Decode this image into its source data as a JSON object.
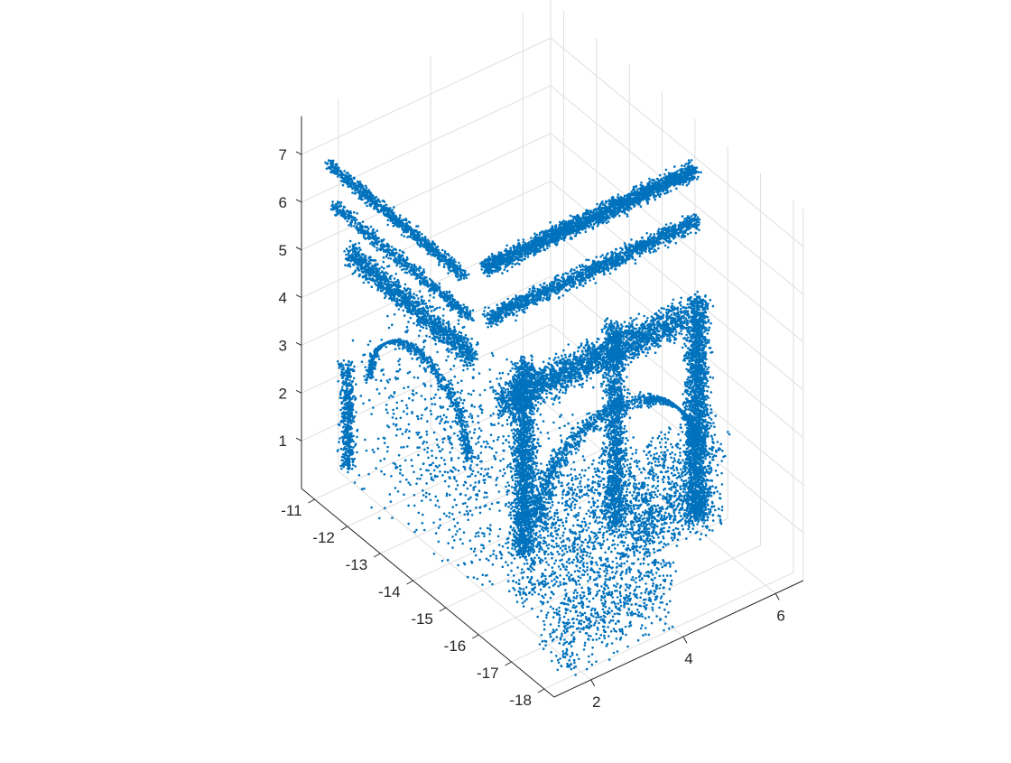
{
  "chart_data": {
    "type": "scatter",
    "subtype": "3d-point-cloud",
    "title": "",
    "xlabel": "",
    "ylabel": "",
    "zlabel": "",
    "x_ticks": [
      "-11",
      "-12",
      "-13",
      "-14",
      "-15",
      "-16",
      "-17",
      "-18"
    ],
    "y_ticks": [
      "2",
      "4",
      "6"
    ],
    "z_ticks": [
      "1",
      "2",
      "3",
      "4",
      "5",
      "6",
      "7"
    ],
    "xlim": [
      -18.3,
      -10.6
    ],
    "ylim": [
      1.2,
      6.6
    ],
    "zlim": [
      0,
      7.8
    ],
    "grid": true,
    "legend": "none",
    "marker_color": "#0072bd",
    "axis_color": "#262626",
    "grid_color": "#dfdfdf",
    "point_count_estimate": 20000
  }
}
